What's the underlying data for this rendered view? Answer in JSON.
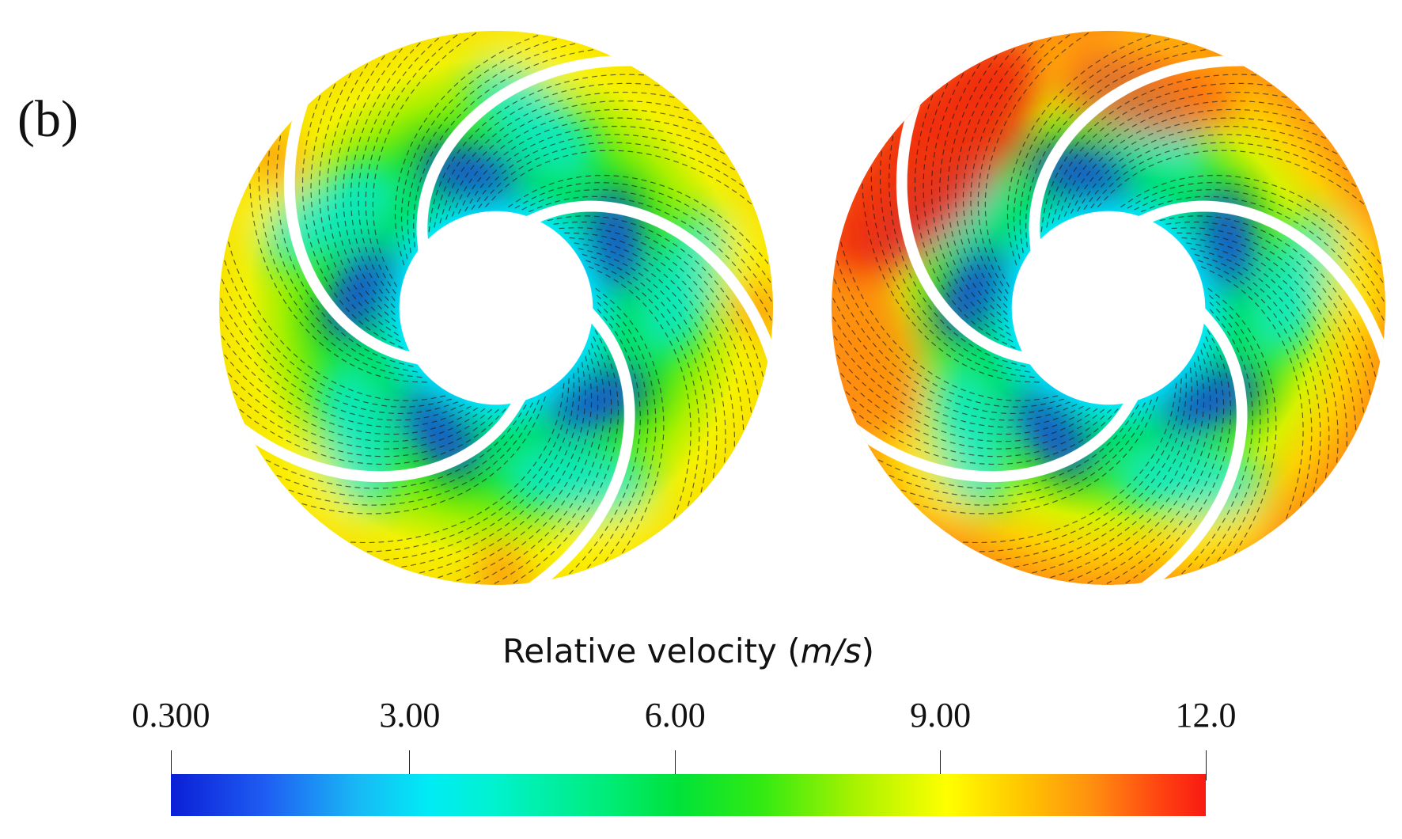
{
  "panel": {
    "label": "(b)"
  },
  "impellers": {
    "left": {
      "name": "left-impeller-contour",
      "blade_count": 5
    },
    "right": {
      "name": "right-impeller-contour",
      "blade_count": 5
    }
  },
  "colorbar": {
    "title_main": "Relative velocity (",
    "title_unit": "m/s",
    "title_close": ")",
    "min": 0.3,
    "max": 12.0,
    "ticks": [
      {
        "value": 0.3,
        "label": "0.300"
      },
      {
        "value": 3.0,
        "label": "3.00"
      },
      {
        "value": 6.0,
        "label": "6.00"
      },
      {
        "value": 9.0,
        "label": "9.00"
      },
      {
        "value": 12.0,
        "label": "12.0"
      }
    ],
    "colormap": [
      "#0a1fd6",
      "#00ecf5",
      "#00e23a",
      "#ffff00",
      "#f81a12"
    ]
  }
}
